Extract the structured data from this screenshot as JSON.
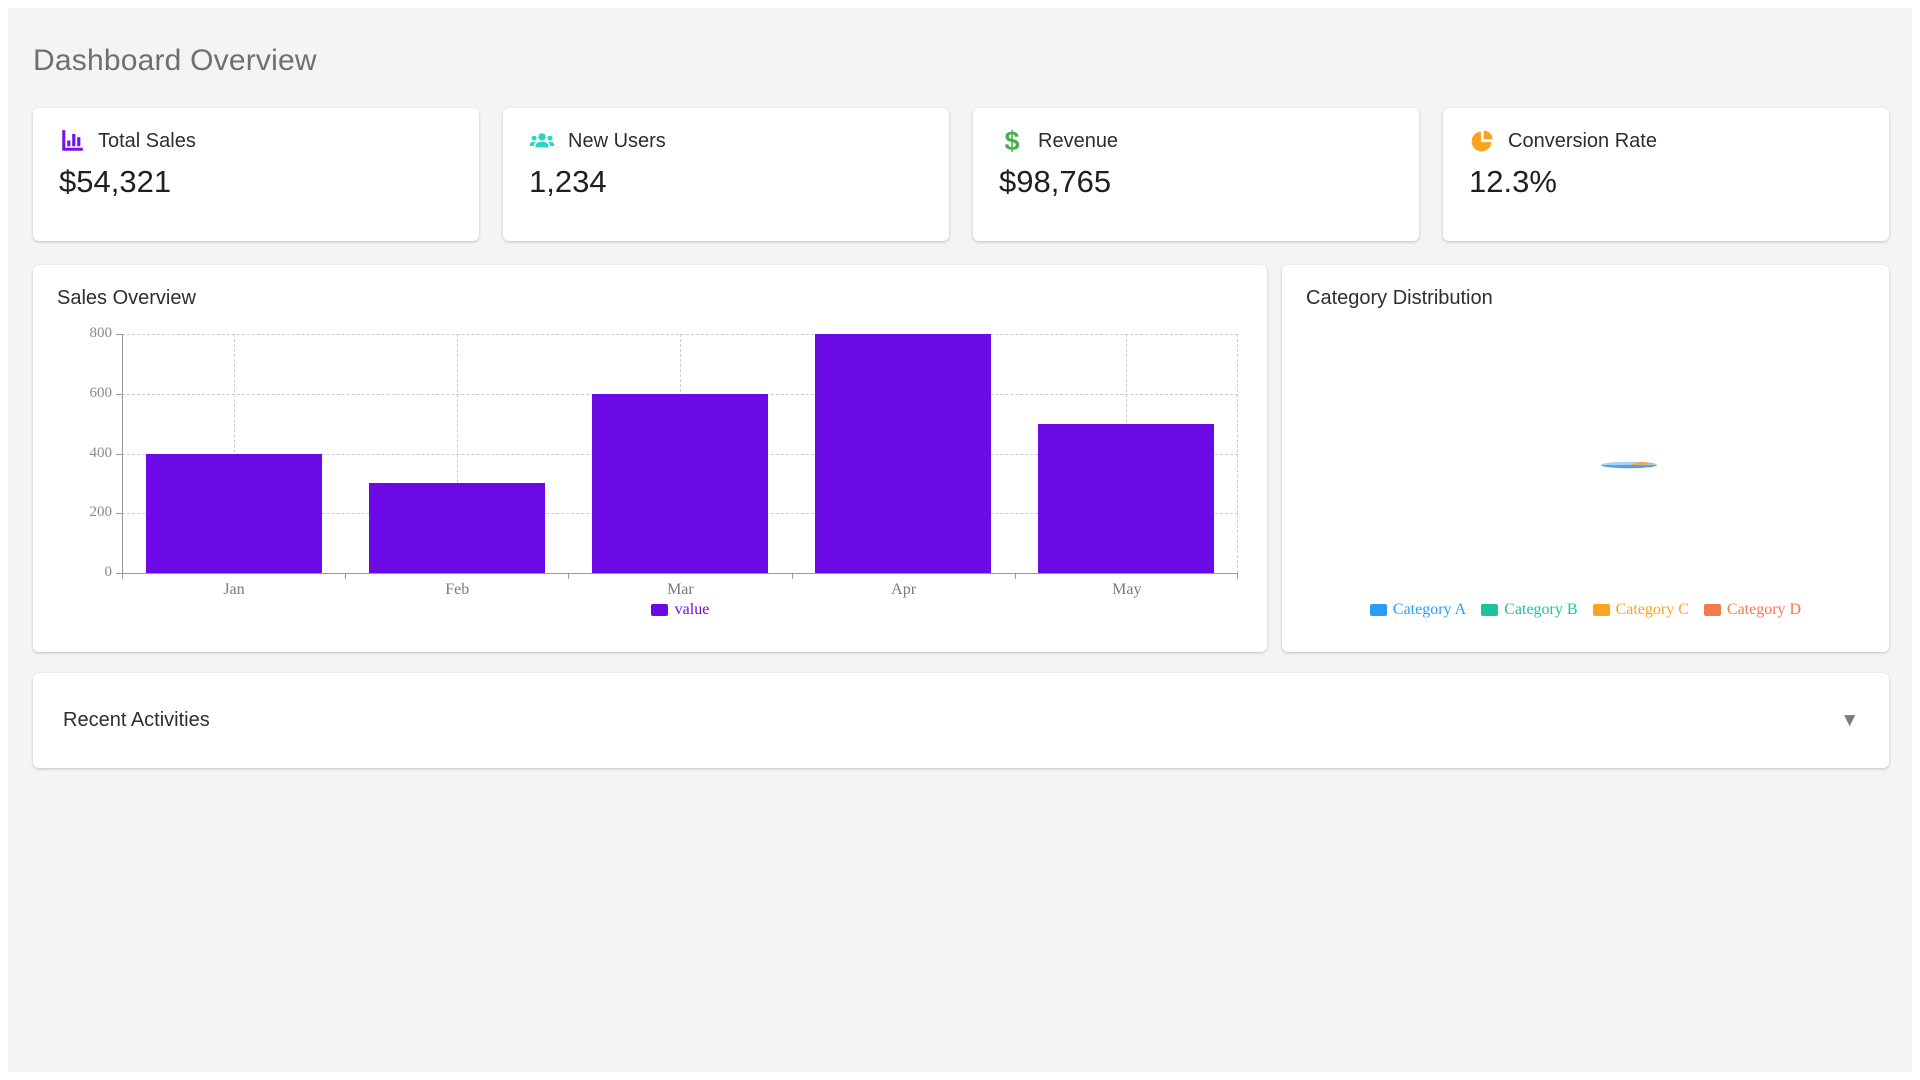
{
  "page_title": "Dashboard Overview",
  "stats": [
    {
      "label": "Total Sales",
      "value": "$54,321",
      "icon": "bar-chart-icon",
      "color": "#7612e8"
    },
    {
      "label": "New Users",
      "value": "1,234",
      "icon": "users-icon",
      "color": "#2bd6bc"
    },
    {
      "label": "Revenue",
      "value": "$98,765",
      "icon": "dollar-icon",
      "color": "#46af4a"
    },
    {
      "label": "Conversion Rate",
      "value": "12.3%",
      "icon": "pie-chart-icon",
      "color": "#f9a41c"
    }
  ],
  "sales_chart_card": {
    "title": "Sales Overview"
  },
  "category_card": {
    "title": "Category Distribution"
  },
  "recent_activities": {
    "title": "Recent Activities",
    "collapse_icon": "▼"
  },
  "chart_data": [
    {
      "type": "bar",
      "title": "Sales Overview",
      "categories": [
        "Jan",
        "Feb",
        "Mar",
        "Apr",
        "May"
      ],
      "series": [
        {
          "name": "value",
          "values": [
            400,
            300,
            600,
            800,
            500
          ]
        }
      ],
      "xlabel": "",
      "ylabel": "",
      "ylim": [
        0,
        800
      ],
      "yticks": [
        0,
        200,
        400,
        600,
        800
      ],
      "bar_color": "#6c0ae6",
      "grid": true,
      "grid_style": "dashed",
      "legend_position": "bottom"
    },
    {
      "type": "pie",
      "title": "Category Distribution",
      "categories": [
        "Category A",
        "Category B",
        "Category C",
        "Category D"
      ],
      "legend": [
        {
          "label": "Category A",
          "color": "#2d9cf4"
        },
        {
          "label": "Category B",
          "color": "#1ec29b"
        },
        {
          "label": "Category C",
          "color": "#fca321"
        },
        {
          "label": "Category D",
          "color": "#f4794f"
        }
      ],
      "legend_position": "bottom",
      "appearance_note": "pie rendered collapsed into a tiny flat sliver (blue with orange tip) at card center"
    }
  ]
}
